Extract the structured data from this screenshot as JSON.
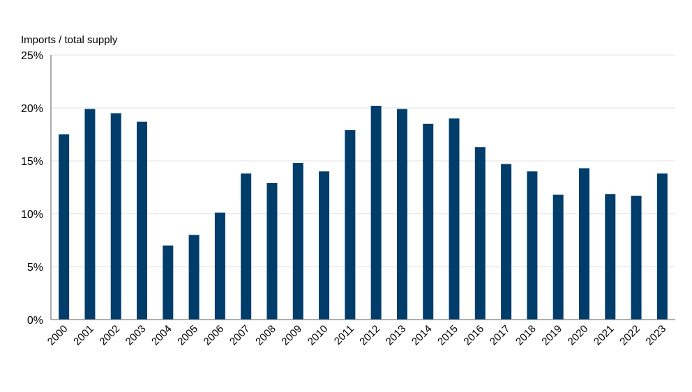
{
  "chart_data": {
    "type": "bar",
    "title": "",
    "ylabel": "Imports / total supply",
    "xlabel": "",
    "categories": [
      "2000",
      "2001",
      "2002",
      "2003",
      "2004",
      "2005",
      "2006",
      "2007",
      "2008",
      "2009",
      "2010",
      "2011",
      "2012",
      "2013",
      "2014",
      "2015",
      "2016",
      "2017",
      "2018",
      "2019",
      "2020",
      "2021",
      "2022",
      "2023"
    ],
    "values": [
      17.5,
      19.9,
      19.5,
      18.7,
      7.0,
      8.0,
      10.1,
      13.8,
      12.9,
      14.8,
      14.0,
      17.9,
      20.2,
      19.9,
      18.5,
      19.0,
      16.3,
      14.7,
      14.0,
      11.8,
      14.3,
      11.85,
      11.7,
      13.8
    ],
    "unit": "%",
    "ylim": [
      0,
      25
    ],
    "yticks": [
      0,
      5,
      10,
      15,
      20,
      25
    ],
    "ytick_labels": [
      "0%",
      "5%",
      "10%",
      "15%",
      "20%",
      "25%"
    ],
    "grid": true,
    "legend": "none",
    "colors": {
      "bar": "#003d6b",
      "grid": "#e6e6e6",
      "axis": "#808080"
    }
  }
}
